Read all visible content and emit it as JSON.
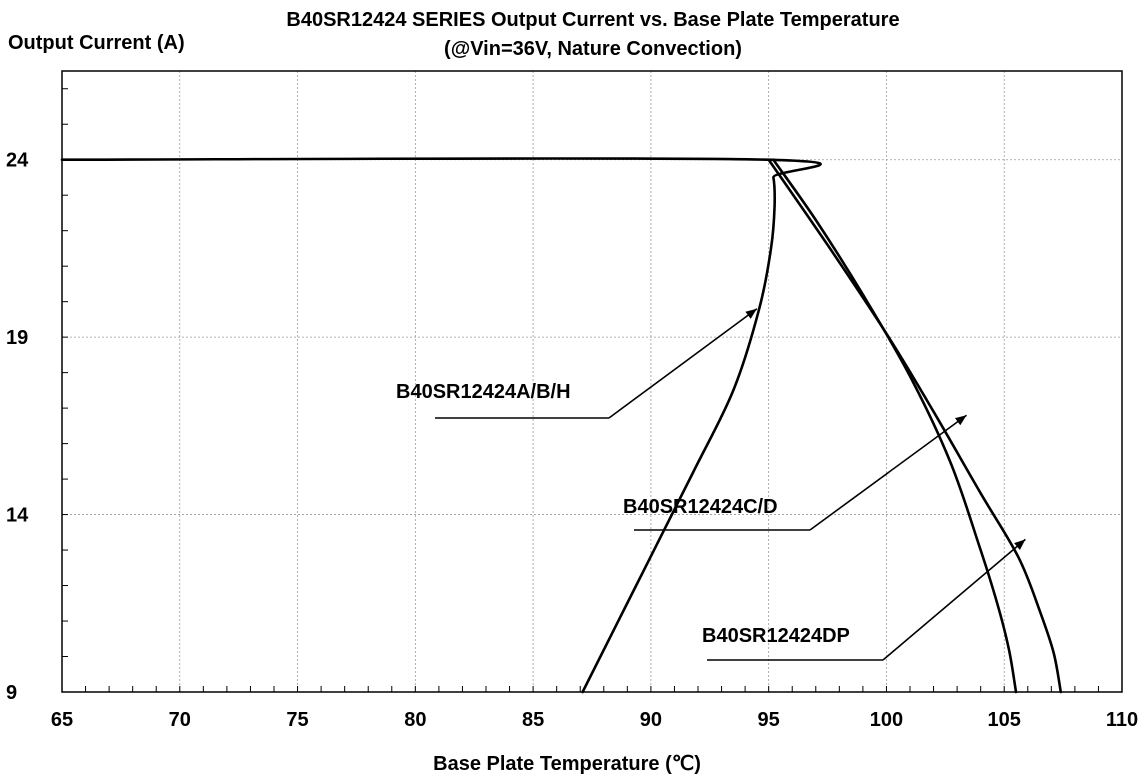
{
  "chart_data": {
    "type": "line",
    "title": "B40SR12424 SERIES Output Current vs. Base Plate Temperature",
    "subtitle": "(@Vin=36V, Nature Convection)",
    "xlabel": "Base Plate Temperature (℃)",
    "ylabel": "Output Current (A)",
    "xlim": [
      65,
      110
    ],
    "ylim": [
      9,
      26.5
    ],
    "xticks": [
      "65",
      "70",
      "75",
      "80",
      "85",
      "90",
      "95",
      "100",
      "105",
      "110"
    ],
    "yticks": [
      "24",
      "19",
      "14",
      "9"
    ],
    "grid": true,
    "series": [
      {
        "name": "B40SR12424A/B/H",
        "x": [
          65,
          94.9,
          95.2,
          95.25,
          95.1,
          94.6,
          93.5,
          91.8,
          89.6,
          87.1
        ],
        "y": [
          24,
          24,
          23.5,
          22.7,
          21.5,
          19.8,
          17.5,
          15.2,
          12.3,
          9
        ]
      },
      {
        "name": "B40SR12424C/D",
        "x": [
          95.2,
          97,
          99,
          101,
          102.7,
          103.9,
          104.7,
          105.2,
          105.5
        ],
        "y": [
          24,
          22.3,
          20.2,
          17.9,
          15.5,
          13.2,
          11.5,
          10.2,
          9
        ]
      },
      {
        "name": "B40SR12424DP",
        "x": [
          95,
          97.5,
          100,
          102,
          104,
          105.6,
          106.5,
          107.1,
          107.4
        ],
        "y": [
          24,
          21.6,
          19.1,
          16.9,
          14.6,
          12.8,
          11.3,
          10.1,
          9
        ]
      }
    ],
    "annotations": [
      {
        "text": "B40SR12424A/B/H",
        "target_x": 94.5,
        "target_y": 19.8
      },
      {
        "text": "B40SR12424C/D",
        "target_x": 103.4,
        "target_y": 16.8
      },
      {
        "text": "B40SR12424DP",
        "target_x": 105.9,
        "target_y": 13.3
      }
    ]
  }
}
